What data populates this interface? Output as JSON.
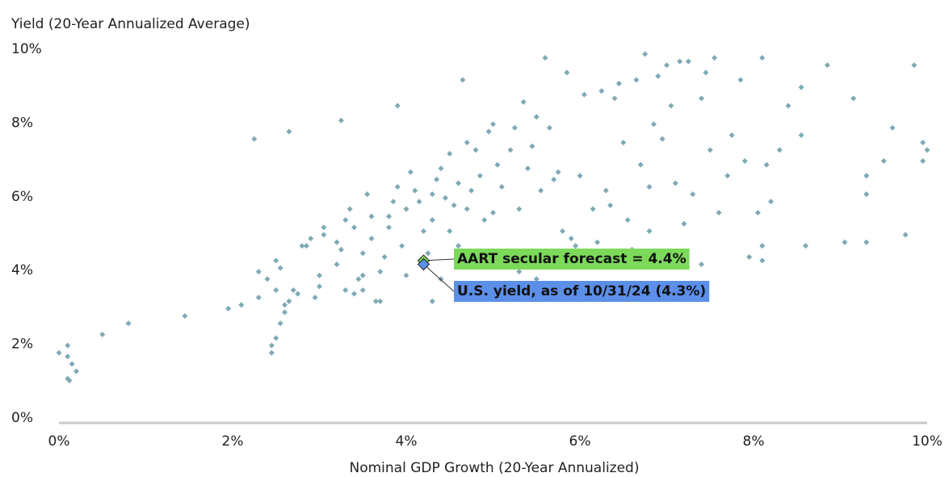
{
  "chart_data": {
    "type": "scatter",
    "ylabel": "Yield (20-Year Annualized Average)",
    "xlabel": "Nominal GDP Growth (20-Year Annualized)",
    "color": "#7ea9b6",
    "x": [
      0.0,
      0.1,
      0.1,
      0.15,
      0.2,
      0.1,
      0.12,
      0.5,
      0.8,
      1.45,
      1.95,
      2.1,
      2.3,
      2.3,
      2.25,
      2.4,
      2.45,
      2.45,
      2.5,
      2.55,
      2.6,
      2.6,
      2.65,
      2.5,
      2.7,
      2.55,
      2.5,
      2.65,
      2.75,
      2.8,
      2.85,
      2.95,
      3.0,
      3.0,
      3.05,
      3.05,
      3.2,
      3.25,
      3.3,
      3.35,
      3.25,
      3.3,
      3.4,
      3.45,
      3.5,
      3.5,
      3.5,
      3.55,
      3.6,
      3.65,
      3.7,
      3.7,
      3.75,
      3.8,
      3.8,
      3.85,
      3.9,
      3.9,
      3.95,
      4.0,
      4.0,
      4.05,
      4.1,
      4.15,
      4.2,
      4.25,
      4.3,
      4.3,
      4.35,
      4.4,
      4.45,
      4.5,
      4.5,
      4.55,
      4.6,
      4.6,
      4.65,
      4.7,
      4.75,
      4.8,
      4.85,
      4.9,
      4.95,
      5.0,
      5.0,
      5.05,
      5.1,
      5.15,
      5.2,
      5.25,
      5.3,
      5.35,
      5.4,
      5.45,
      5.5,
      5.5,
      5.55,
      5.6,
      5.65,
      5.7,
      5.75,
      5.8,
      5.85,
      5.9,
      5.95,
      6.0,
      6.05,
      6.1,
      6.15,
      6.25,
      6.3,
      6.35,
      6.4,
      6.45,
      6.5,
      6.55,
      6.6,
      6.65,
      6.7,
      6.75,
      6.8,
      6.85,
      6.9,
      6.95,
      7.0,
      7.05,
      7.1,
      7.15,
      7.2,
      7.25,
      7.3,
      7.4,
      7.45,
      7.5,
      7.55,
      7.6,
      7.7,
      7.75,
      7.85,
      7.9,
      7.95,
      8.05,
      8.1,
      8.15,
      8.2,
      8.3,
      8.4,
      8.55,
      8.55,
      8.6,
      8.85,
      9.05,
      9.15,
      9.3,
      9.3,
      9.3,
      9.5,
      9.6,
      9.75,
      9.85,
      9.95,
      10.0,
      9.95,
      8.1,
      8.1,
      6.2,
      6.8,
      7.0,
      7.4,
      4.3,
      4.4,
      3.4,
      2.9,
      5.3,
      5.1,
      4.7,
      4.8,
      3.6,
      3.2
    ],
    "values": [
      1.9,
      1.8,
      2.1,
      1.6,
      1.4,
      1.2,
      1.15,
      2.4,
      2.7,
      2.9,
      3.1,
      3.2,
      3.4,
      4.1,
      7.7,
      3.9,
      1.9,
      2.1,
      2.3,
      2.7,
      3.0,
      3.2,
      3.3,
      3.6,
      3.6,
      4.2,
      4.4,
      7.9,
      3.5,
      4.8,
      4.8,
      3.4,
      3.7,
      4.0,
      5.1,
      5.3,
      4.3,
      4.7,
      5.5,
      5.8,
      8.2,
      3.6,
      3.5,
      3.9,
      4.0,
      4.6,
      3.6,
      6.2,
      5.0,
      3.3,
      3.3,
      4.1,
      4.5,
      5.3,
      5.6,
      6.0,
      6.4,
      8.6,
      4.8,
      5.8,
      4.0,
      6.8,
      6.3,
      6.0,
      5.2,
      4.6,
      6.2,
      5.5,
      6.6,
      6.9,
      6.1,
      7.3,
      5.2,
      5.9,
      6.5,
      4.8,
      9.3,
      7.6,
      6.3,
      7.4,
      6.7,
      5.5,
      7.9,
      5.7,
      8.1,
      7.0,
      6.4,
      4.6,
      7.4,
      8.0,
      5.8,
      8.7,
      6.9,
      7.5,
      8.3,
      3.9,
      6.3,
      9.9,
      8.0,
      6.6,
      6.8,
      5.2,
      9.5,
      5.0,
      4.8,
      6.7,
      8.9,
      4.5,
      5.8,
      9.0,
      6.3,
      5.9,
      8.8,
      9.2,
      7.6,
      5.5,
      4.7,
      9.3,
      7.0,
      10.0,
      6.4,
      8.1,
      9.4,
      7.7,
      9.7,
      8.6,
      6.5,
      9.8,
      5.4,
      9.8,
      6.2,
      8.8,
      9.5,
      7.4,
      9.9,
      5.7,
      6.7,
      7.8,
      9.3,
      7.1,
      4.5,
      5.7,
      9.9,
      7.0,
      6.0,
      7.4,
      8.6,
      9.1,
      7.8,
      4.8,
      9.7,
      4.9,
      8.8,
      6.7,
      6.2,
      4.9,
      7.1,
      8.0,
      5.1,
      9.7,
      7.6,
      7.4,
      7.1,
      4.8,
      4.4,
      4.9,
      5.2,
      4.3,
      4.3,
      3.3,
      3.9,
      5.3,
      5.0,
      4.1,
      4.4,
      5.8,
      4.5,
      5.6,
      4.9
    ],
    "highlights": [
      {
        "label": "AART secular forecast = 4.4%",
        "x": 4.2,
        "y": 4.4,
        "color": "#7cd95a"
      },
      {
        "label": "U.S. yield, as of 10/31/24 (4.3%)",
        "x": 4.2,
        "y": 4.3,
        "color": "#5b8fe8"
      }
    ],
    "xlim": [
      0,
      10
    ],
    "ylim": [
      0,
      10
    ],
    "xticks": [
      {
        "value": 0,
        "label": "0%"
      },
      {
        "value": 2,
        "label": "2%"
      },
      {
        "value": 4,
        "label": "4%"
      },
      {
        "value": 6,
        "label": "6%"
      },
      {
        "value": 8,
        "label": "8%"
      },
      {
        "value": 10,
        "label": "10%"
      }
    ],
    "yticks": [
      {
        "value": 0,
        "label": "0%"
      },
      {
        "value": 2,
        "label": "2%"
      },
      {
        "value": 4,
        "label": "4%"
      },
      {
        "value": 6,
        "label": "6%"
      },
      {
        "value": 8,
        "label": "8%"
      },
      {
        "value": 10,
        "label": "10%"
      }
    ]
  }
}
